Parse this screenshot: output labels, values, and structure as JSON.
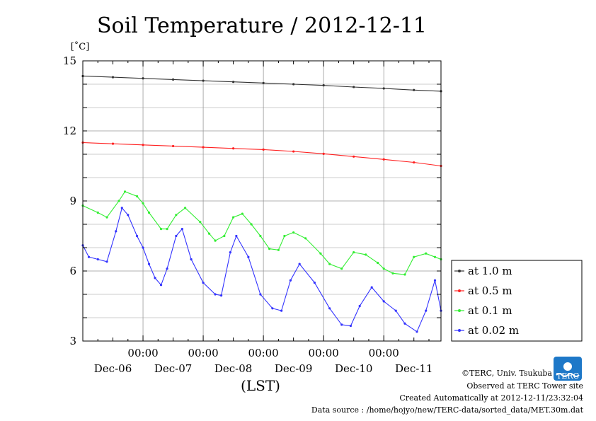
{
  "colors": {
    "at_1_0": "#333333",
    "at_0_5": "#ff2020",
    "at_0_1": "#33ee33",
    "at_0_02": "#3333ff",
    "grid": "#999999",
    "logo": "#1e78c8"
  },
  "chart_data": {
    "type": "line",
    "title": "Soil Temperature / 2012-12-11",
    "ylabel": "[˚C]",
    "xlabel": "(LST)",
    "ylim": [
      3,
      15
    ],
    "xlim_days": [
      -1.0,
      4.95
    ],
    "y_ticks": [
      "3",
      "6",
      "9",
      "12",
      "15"
    ],
    "x_ticks_time": [
      "00:00",
      "00:00",
      "00:00",
      "00:00",
      "00:00"
    ],
    "x_ticks_date": [
      "Dec-06",
      "Dec-07",
      "Dec-08",
      "Dec-09",
      "Dec-10",
      "Dec-11"
    ],
    "legend_position": "right",
    "series": [
      {
        "name": "at 1.0 m",
        "color_key": "at_1_0",
        "x": [
          -1.0,
          -0.5,
          0.0,
          0.5,
          1.0,
          1.5,
          2.0,
          2.5,
          3.0,
          3.5,
          4.0,
          4.5,
          4.95
        ],
        "y": [
          14.35,
          14.3,
          14.25,
          14.2,
          14.15,
          14.1,
          14.05,
          14.0,
          13.95,
          13.88,
          13.82,
          13.75,
          13.7
        ]
      },
      {
        "name": "at 0.5 m",
        "color_key": "at_0_5",
        "x": [
          -1.0,
          -0.5,
          0.0,
          0.5,
          1.0,
          1.5,
          2.0,
          2.5,
          3.0,
          3.5,
          4.0,
          4.5,
          4.95
        ],
        "y": [
          11.5,
          11.45,
          11.4,
          11.35,
          11.3,
          11.25,
          11.2,
          11.12,
          11.02,
          10.9,
          10.78,
          10.65,
          10.5
        ]
      },
      {
        "name": "at 0.1 m",
        "color_key": "at_0_1",
        "x": [
          -1.0,
          -0.75,
          -0.6,
          -0.4,
          -0.3,
          -0.1,
          0.0,
          0.1,
          0.3,
          0.4,
          0.55,
          0.7,
          0.95,
          1.1,
          1.2,
          1.35,
          1.5,
          1.65,
          1.8,
          1.95,
          2.1,
          2.25,
          2.35,
          2.5,
          2.7,
          2.95,
          3.1,
          3.3,
          3.5,
          3.7,
          3.9,
          4.0,
          4.15,
          4.35,
          4.5,
          4.7,
          4.85,
          4.95
        ],
        "y": [
          8.8,
          8.5,
          8.3,
          9.0,
          9.4,
          9.2,
          8.9,
          8.5,
          7.8,
          7.8,
          8.4,
          8.7,
          8.1,
          7.6,
          7.3,
          7.5,
          8.3,
          8.45,
          8.0,
          7.5,
          6.95,
          6.9,
          7.5,
          7.65,
          7.4,
          6.75,
          6.3,
          6.1,
          6.8,
          6.7,
          6.35,
          6.1,
          5.9,
          5.85,
          6.6,
          6.75,
          6.6,
          6.5
        ]
      },
      {
        "name": "at 0.02 m",
        "color_key": "at_0_02",
        "x": [
          -1.0,
          -0.9,
          -0.75,
          -0.6,
          -0.45,
          -0.35,
          -0.25,
          -0.1,
          0.0,
          0.1,
          0.2,
          0.3,
          0.4,
          0.55,
          0.65,
          0.8,
          1.0,
          1.2,
          1.3,
          1.45,
          1.55,
          1.75,
          1.95,
          2.15,
          2.3,
          2.45,
          2.6,
          2.85,
          3.1,
          3.3,
          3.45,
          3.6,
          3.8,
          4.0,
          4.2,
          4.35,
          4.55,
          4.7,
          4.85,
          4.95
        ],
        "y": [
          7.1,
          6.6,
          6.5,
          6.4,
          7.7,
          8.7,
          8.4,
          7.5,
          7.0,
          6.3,
          5.7,
          5.4,
          6.1,
          7.5,
          7.8,
          6.5,
          5.5,
          5.0,
          4.95,
          6.8,
          7.5,
          6.6,
          5.0,
          4.4,
          4.3,
          5.6,
          6.3,
          5.5,
          4.4,
          3.7,
          3.65,
          4.5,
          5.3,
          4.7,
          4.3,
          3.75,
          3.4,
          4.3,
          5.6,
          4.3
        ]
      }
    ]
  },
  "legend": {
    "items": [
      "at 1.0 m",
      "at 0.5 m",
      "at 0.1 m",
      "at 0.02 m"
    ]
  },
  "footer": {
    "copyright": "©TERC, Univ. Tsukuba",
    "observed": "Observed at TERC Tower site",
    "created": "Created Automatically at 2012-12-11/23:32:04",
    "source": "Data source : /home/hojyo/new/TERC-data/sorted_data/MET.30m.dat",
    "logo_text": "TERC"
  }
}
